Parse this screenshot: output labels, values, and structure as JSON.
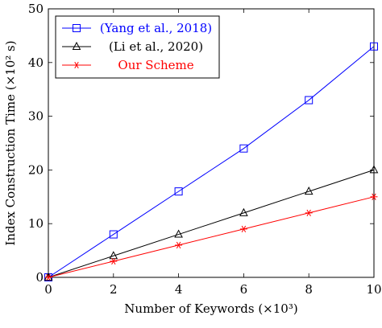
{
  "chart_data": {
    "type": "line",
    "x": [
      0,
      2,
      4,
      6,
      8,
      10
    ],
    "series": [
      {
        "name": "(Yang et al., 2018)",
        "values": [
          0,
          8,
          16,
          24,
          33,
          43
        ],
        "color": "#0000ff",
        "marker": "square"
      },
      {
        "name": "(Li et al., 2020)",
        "values": [
          0,
          4,
          8,
          12,
          16,
          20
        ],
        "color": "#000000",
        "marker": "triangle"
      },
      {
        "name": "Our Scheme",
        "values": [
          0,
          3,
          6,
          9,
          12,
          15
        ],
        "color": "#ff0000",
        "marker": "star"
      }
    ],
    "xlabel": "Number of Keywords (×10³)",
    "ylabel": "Index Construction Time (×10² s)",
    "xlim": [
      0,
      10
    ],
    "ylim": [
      0,
      50
    ],
    "xticks": [
      0,
      2,
      4,
      6,
      8,
      10
    ],
    "yticks": [
      0,
      10,
      20,
      30,
      40,
      50
    ],
    "grid": false,
    "legend": "top-left"
  }
}
